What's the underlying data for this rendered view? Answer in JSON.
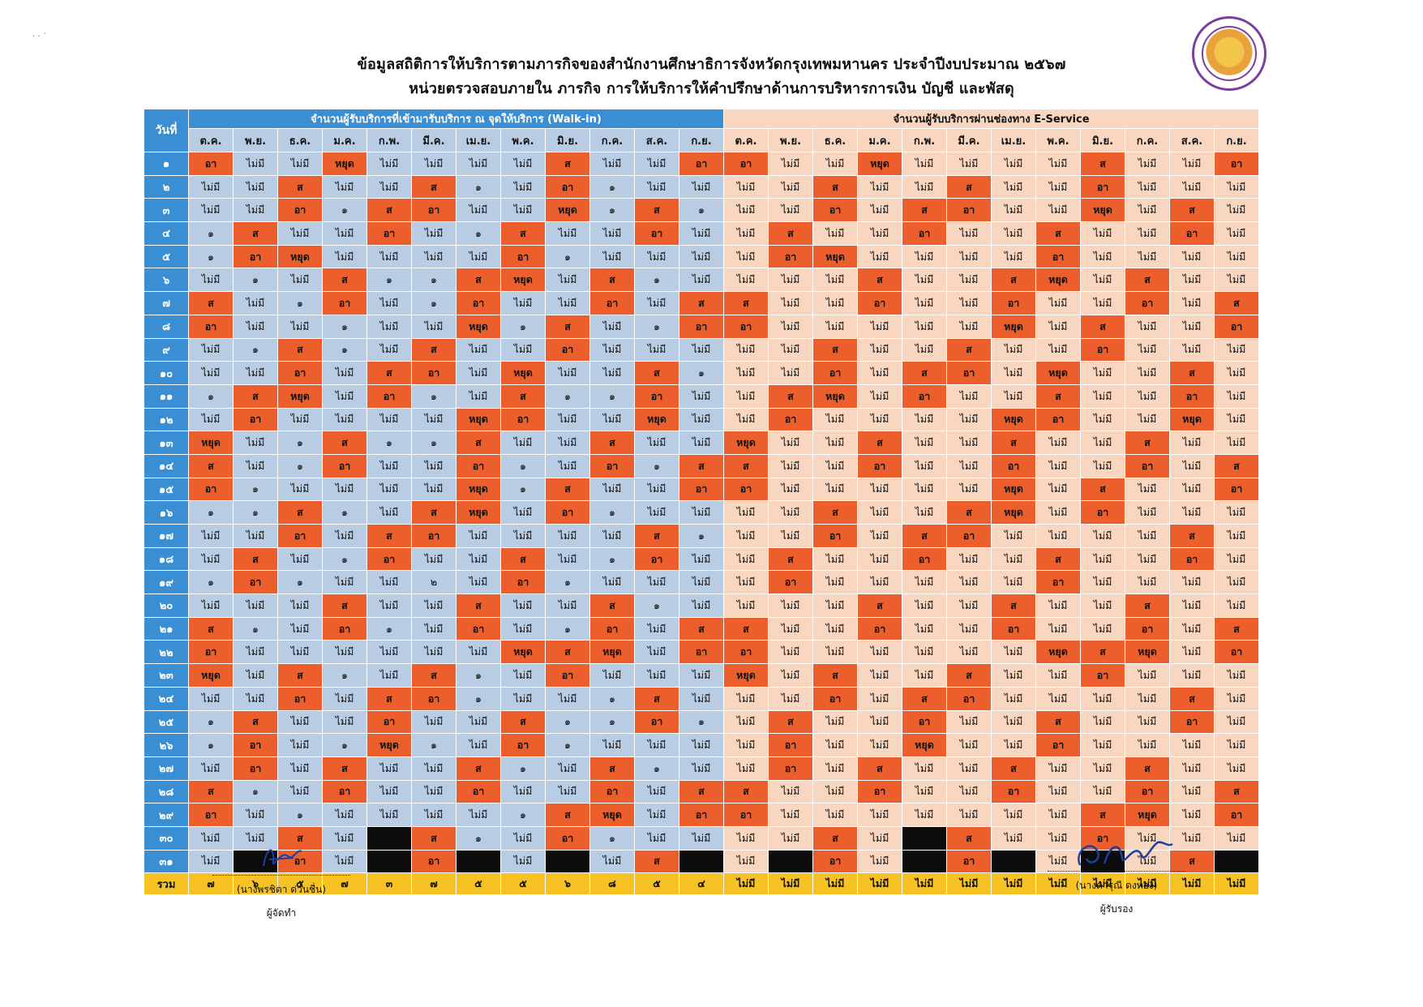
{
  "title_line1": "ข้อมูลสถิติการให้บริการตามภารกิจของสำนักงานศึกษาธิการจังหวัดกรุงเทพมหานคร ประจำปีงบประมาณ ๒๕๖๗",
  "title_line2": "หน่วยตรวจสอบภายใน ภารกิจ การให้บริการให้คำปรึกษาด้านการบริหารการเงิน บัญชี และพัสดุ",
  "table": {
    "corner_label": "วันที่",
    "walkin_header": "จำนวนผู้รับบริการที่เข้ามารับบริการ ณ จุดให้บริการ (Walk-in)",
    "eservice_header": "จำนวนผู้รับบริการผ่านช่องทาง E-Service",
    "months": [
      "ต.ค.",
      "พ.ย.",
      "ธ.ค.",
      "ม.ค.",
      "ก.พ.",
      "มี.ค.",
      "เม.ย.",
      "พ.ค.",
      "มิ.ย.",
      "ก.ค.",
      "ส.ค.",
      "ก.ย."
    ],
    "day_labels": [
      "๑",
      "๒",
      "๓",
      "๔",
      "๕",
      "๖",
      "๗",
      "๘",
      "๙",
      "๑๐",
      "๑๑",
      "๑๒",
      "๑๓",
      "๑๔",
      "๑๕",
      "๑๖",
      "๑๗",
      "๑๘",
      "๑๙",
      "๒๐",
      "๒๑",
      "๒๒",
      "๒๓",
      "๒๔",
      "๒๕",
      "๒๖",
      "๒๗",
      "๒๘",
      "๒๙",
      "๓๐",
      "๓๑"
    ],
    "walkin_rows": [
      [
        "อา",
        "ไม่มี",
        "ไม่มี",
        "หยุด",
        "ไม่มี",
        "ไม่มี",
        "ไม่มี",
        "ไม่มี",
        "ส",
        "ไม่มี",
        "ไม่มี",
        "อา"
      ],
      [
        "ไม่มี",
        "ไม่มี",
        "ส",
        "ไม่มี",
        "ไม่มี",
        "ส",
        "๑",
        "ไม่มี",
        "อา",
        "๑",
        "ไม่มี",
        "ไม่มี"
      ],
      [
        "ไม่มี",
        "ไม่มี",
        "อา",
        "๑",
        "ส",
        "อา",
        "ไม่มี",
        "ไม่มี",
        "หยุด",
        "๑",
        "ส",
        "๑"
      ],
      [
        "๑",
        "ส",
        "ไม่มี",
        "ไม่มี",
        "อา",
        "ไม่มี",
        "๑",
        "ส",
        "ไม่มี",
        "ไม่มี",
        "อา",
        "ไม่มี"
      ],
      [
        "๑",
        "อา",
        "หยุด",
        "ไม่มี",
        "ไม่มี",
        "ไม่มี",
        "ไม่มี",
        "อา",
        "๑",
        "ไม่มี",
        "ไม่มี",
        "ไม่มี"
      ],
      [
        "ไม่มี",
        "๑",
        "ไม่มี",
        "ส",
        "๑",
        "๑",
        "ส",
        "หยุด",
        "ไม่มี",
        "ส",
        "๑",
        "ไม่มี"
      ],
      [
        "ส",
        "ไม่มี",
        "๑",
        "อา",
        "ไม่มี",
        "๑",
        "อา",
        "ไม่มี",
        "ไม่มี",
        "อา",
        "ไม่มี",
        "ส"
      ],
      [
        "อา",
        "ไม่มี",
        "ไม่มี",
        "๑",
        "ไม่มี",
        "ไม่มี",
        "หยุด",
        "๑",
        "ส",
        "ไม่มี",
        "๑",
        "อา"
      ],
      [
        "ไม่มี",
        "๑",
        "ส",
        "๑",
        "ไม่มี",
        "ส",
        "ไม่มี",
        "ไม่มี",
        "อา",
        "ไม่มี",
        "ไม่มี",
        "ไม่มี"
      ],
      [
        "ไม่มี",
        "ไม่มี",
        "อา",
        "ไม่มี",
        "ส",
        "อา",
        "ไม่มี",
        "หยุด",
        "ไม่มี",
        "ไม่มี",
        "ส",
        "๑"
      ],
      [
        "๑",
        "ส",
        "หยุด",
        "ไม่มี",
        "อา",
        "๑",
        "ไม่มี",
        "ส",
        "๑",
        "๑",
        "อา",
        "ไม่มี"
      ],
      [
        "ไม่มี",
        "อา",
        "ไม่มี",
        "ไม่มี",
        "ไม่มี",
        "ไม่มี",
        "หยุด",
        "อา",
        "ไม่มี",
        "ไม่มี",
        "หยุด",
        "ไม่มี"
      ],
      [
        "หยุด",
        "ไม่มี",
        "๑",
        "ส",
        "๑",
        "๑",
        "ส",
        "ไม่มี",
        "ไม่มี",
        "ส",
        "ไม่มี",
        "ไม่มี"
      ],
      [
        "ส",
        "ไม่มี",
        "๑",
        "อา",
        "ไม่มี",
        "ไม่มี",
        "อา",
        "๑",
        "ไม่มี",
        "อา",
        "๑",
        "ส"
      ],
      [
        "อา",
        "๑",
        "ไม่มี",
        "ไม่มี",
        "ไม่มี",
        "ไม่มี",
        "หยุด",
        "๑",
        "ส",
        "ไม่มี",
        "ไม่มี",
        "อา"
      ],
      [
        "๑",
        "๑",
        "ส",
        "๑",
        "ไม่มี",
        "ส",
        "หยุด",
        "ไม่มี",
        "อา",
        "๑",
        "ไม่มี",
        "ไม่มี"
      ],
      [
        "ไม่มี",
        "ไม่มี",
        "อา",
        "ไม่มี",
        "ส",
        "อา",
        "ไม่มี",
        "ไม่มี",
        "ไม่มี",
        "ไม่มี",
        "ส",
        "๑"
      ],
      [
        "ไม่มี",
        "ส",
        "ไม่มี",
        "๑",
        "อา",
        "ไม่มี",
        "ไม่มี",
        "ส",
        "ไม่มี",
        "๑",
        "อา",
        "ไม่มี"
      ],
      [
        "๑",
        "อา",
        "๑",
        "ไม่มี",
        "ไม่มี",
        "๒",
        "ไม่มี",
        "อา",
        "๑",
        "ไม่มี",
        "ไม่มี",
        "ไม่มี"
      ],
      [
        "ไม่มี",
        "ไม่มี",
        "ไม่มี",
        "ส",
        "ไม่มี",
        "ไม่มี",
        "ส",
        "ไม่มี",
        "ไม่มี",
        "ส",
        "๑",
        "ไม่มี"
      ],
      [
        "ส",
        "๑",
        "ไม่มี",
        "อา",
        "๑",
        "ไม่มี",
        "อา",
        "ไม่มี",
        "๑",
        "อา",
        "ไม่มี",
        "ส"
      ],
      [
        "อา",
        "ไม่มี",
        "ไม่มี",
        "ไม่มี",
        "ไม่มี",
        "ไม่มี",
        "ไม่มี",
        "หยุด",
        "ส",
        "หยุด",
        "ไม่มี",
        "อา"
      ],
      [
        "หยุด",
        "ไม่มี",
        "ส",
        "๑",
        "ไม่มี",
        "ส",
        "๑",
        "ไม่มี",
        "อา",
        "ไม่มี",
        "ไม่มี",
        "ไม่มี"
      ],
      [
        "ไม่มี",
        "ไม่มี",
        "อา",
        "ไม่มี",
        "ส",
        "อา",
        "๑",
        "ไม่มี",
        "ไม่มี",
        "๑",
        "ส",
        "ไม่มี"
      ],
      [
        "๑",
        "ส",
        "ไม่มี",
        "ไม่มี",
        "อา",
        "ไม่มี",
        "ไม่มี",
        "ส",
        "๑",
        "๑",
        "อา",
        "๑"
      ],
      [
        "๑",
        "อา",
        "ไม่มี",
        "๑",
        "หยุด",
        "๑",
        "ไม่มี",
        "อา",
        "๑",
        "ไม่มี",
        "ไม่มี",
        "ไม่มี"
      ],
      [
        "ไม่มี",
        "อา",
        "ไม่มี",
        "ส",
        "ไม่มี",
        "ไม่มี",
        "ส",
        "๑",
        "ไม่มี",
        "ส",
        "๑",
        "ไม่มี"
      ],
      [
        "ส",
        "๑",
        "ไม่มี",
        "อา",
        "ไม่มี",
        "ไม่มี",
        "อา",
        "ไม่มี",
        "ไม่มี",
        "อา",
        "ไม่มี",
        "ส"
      ],
      [
        "อา",
        "ไม่มี",
        "๑",
        "ไม่มี",
        "ไม่มี",
        "ไม่มี",
        "ไม่มี",
        "๑",
        "ส",
        "หยุด",
        "ไม่มี",
        "อา"
      ],
      [
        "ไม่มี",
        "ไม่มี",
        "ส",
        "ไม่มี",
        "",
        "ส",
        "๑",
        "ไม่มี",
        "อา",
        "๑",
        "ไม่มี",
        "ไม่มี"
      ],
      [
        "ไม่มี",
        "",
        "อา",
        "ไม่มี",
        "",
        "อา",
        "",
        "ไม่มี",
        "",
        "ไม่มี",
        "ส",
        ""
      ]
    ],
    "eservice_rows": [
      [
        "อา",
        "ไม่มี",
        "ไม่มี",
        "หยุด",
        "ไม่มี",
        "ไม่มี",
        "ไม่มี",
        "ไม่มี",
        "ส",
        "ไม่มี",
        "ไม่มี",
        "อา"
      ],
      [
        "ไม่มี",
        "ไม่มี",
        "ส",
        "ไม่มี",
        "ไม่มี",
        "ส",
        "ไม่มี",
        "ไม่มี",
        "อา",
        "ไม่มี",
        "ไม่มี",
        "ไม่มี"
      ],
      [
        "ไม่มี",
        "ไม่มี",
        "อา",
        "ไม่มี",
        "ส",
        "อา",
        "ไม่มี",
        "ไม่มี",
        "หยุด",
        "ไม่มี",
        "ส",
        "ไม่มี"
      ],
      [
        "ไม่มี",
        "ส",
        "ไม่มี",
        "ไม่มี",
        "อา",
        "ไม่มี",
        "ไม่มี",
        "ส",
        "ไม่มี",
        "ไม่มี",
        "อา",
        "ไม่มี"
      ],
      [
        "ไม่มี",
        "อา",
        "หยุด",
        "ไม่มี",
        "ไม่มี",
        "ไม่มี",
        "ไม่มี",
        "อา",
        "ไม่มี",
        "ไม่มี",
        "ไม่มี",
        "ไม่มี"
      ],
      [
        "ไม่มี",
        "ไม่มี",
        "ไม่มี",
        "ส",
        "ไม่มี",
        "ไม่มี",
        "ส",
        "หยุด",
        "ไม่มี",
        "ส",
        "ไม่มี",
        "ไม่มี"
      ],
      [
        "ส",
        "ไม่มี",
        "ไม่มี",
        "อา",
        "ไม่มี",
        "ไม่มี",
        "อา",
        "ไม่มี",
        "ไม่มี",
        "อา",
        "ไม่มี",
        "ส"
      ],
      [
        "อา",
        "ไม่มี",
        "ไม่มี",
        "ไม่มี",
        "ไม่มี",
        "ไม่มี",
        "หยุด",
        "ไม่มี",
        "ส",
        "ไม่มี",
        "ไม่มี",
        "อา"
      ],
      [
        "ไม่มี",
        "ไม่มี",
        "ส",
        "ไม่มี",
        "ไม่มี",
        "ส",
        "ไม่มี",
        "ไม่มี",
        "อา",
        "ไม่มี",
        "ไม่มี",
        "ไม่มี"
      ],
      [
        "ไม่มี",
        "ไม่มี",
        "อา",
        "ไม่มี",
        "ส",
        "อา",
        "ไม่มี",
        "หยุด",
        "ไม่มี",
        "ไม่มี",
        "ส",
        "ไม่มี"
      ],
      [
        "ไม่มี",
        "ส",
        "หยุด",
        "ไม่มี",
        "อา",
        "ไม่มี",
        "ไม่มี",
        "ส",
        "ไม่มี",
        "ไม่มี",
        "อา",
        "ไม่มี"
      ],
      [
        "ไม่มี",
        "อา",
        "ไม่มี",
        "ไม่มี",
        "ไม่มี",
        "ไม่มี",
        "หยุด",
        "อา",
        "ไม่มี",
        "ไม่มี",
        "หยุด",
        "ไม่มี"
      ],
      [
        "หยุด",
        "ไม่มี",
        "ไม่มี",
        "ส",
        "ไม่มี",
        "ไม่มี",
        "ส",
        "ไม่มี",
        "ไม่มี",
        "ส",
        "ไม่มี",
        "ไม่มี"
      ],
      [
        "ส",
        "ไม่มี",
        "ไม่มี",
        "อา",
        "ไม่มี",
        "ไม่มี",
        "อา",
        "ไม่มี",
        "ไม่มี",
        "อา",
        "ไม่มี",
        "ส"
      ],
      [
        "อา",
        "ไม่มี",
        "ไม่มี",
        "ไม่มี",
        "ไม่มี",
        "ไม่มี",
        "หยุด",
        "ไม่มี",
        "ส",
        "ไม่มี",
        "ไม่มี",
        "อา"
      ],
      [
        "ไม่มี",
        "ไม่มี",
        "ส",
        "ไม่มี",
        "ไม่มี",
        "ส",
        "หยุด",
        "ไม่มี",
        "อา",
        "ไม่มี",
        "ไม่มี",
        "ไม่มี"
      ],
      [
        "ไม่มี",
        "ไม่มี",
        "อา",
        "ไม่มี",
        "ส",
        "อา",
        "ไม่มี",
        "ไม่มี",
        "ไม่มี",
        "ไม่มี",
        "ส",
        "ไม่มี"
      ],
      [
        "ไม่มี",
        "ส",
        "ไม่มี",
        "ไม่มี",
        "อา",
        "ไม่มี",
        "ไม่มี",
        "ส",
        "ไม่มี",
        "ไม่มี",
        "อา",
        "ไม่มี"
      ],
      [
        "ไม่มี",
        "อา",
        "ไม่มี",
        "ไม่มี",
        "ไม่มี",
        "ไม่มี",
        "ไม่มี",
        "อา",
        "ไม่มี",
        "ไม่มี",
        "ไม่มี",
        "ไม่มี"
      ],
      [
        "ไม่มี",
        "ไม่มี",
        "ไม่มี",
        "ส",
        "ไม่มี",
        "ไม่มี",
        "ส",
        "ไม่มี",
        "ไม่มี",
        "ส",
        "ไม่มี",
        "ไม่มี"
      ],
      [
        "ส",
        "ไม่มี",
        "ไม่มี",
        "อา",
        "ไม่มี",
        "ไม่มี",
        "อา",
        "ไม่มี",
        "ไม่มี",
        "อา",
        "ไม่มี",
        "ส"
      ],
      [
        "อา",
        "ไม่มี",
        "ไม่มี",
        "ไม่มี",
        "ไม่มี",
        "ไม่มี",
        "ไม่มี",
        "หยุด",
        "ส",
        "หยุด",
        "ไม่มี",
        "อา"
      ],
      [
        "หยุด",
        "ไม่มี",
        "ส",
        "ไม่มี",
        "ไม่มี",
        "ส",
        "ไม่มี",
        "ไม่มี",
        "อา",
        "ไม่มี",
        "ไม่มี",
        "ไม่มี"
      ],
      [
        "ไม่มี",
        "ไม่มี",
        "อา",
        "ไม่มี",
        "ส",
        "อา",
        "ไม่มี",
        "ไม่มี",
        "ไม่มี",
        "ไม่มี",
        "ส",
        "ไม่มี"
      ],
      [
        "ไม่มี",
        "ส",
        "ไม่มี",
        "ไม่มี",
        "อา",
        "ไม่มี",
        "ไม่มี",
        "ส",
        "ไม่มี",
        "ไม่มี",
        "อา",
        "ไม่มี"
      ],
      [
        "ไม่มี",
        "อา",
        "ไม่มี",
        "ไม่มี",
        "หยุด",
        "ไม่มี",
        "ไม่มี",
        "อา",
        "ไม่มี",
        "ไม่มี",
        "ไม่มี",
        "ไม่มี"
      ],
      [
        "ไม่มี",
        "อา",
        "ไม่มี",
        "ส",
        "ไม่มี",
        "ไม่มี",
        "ส",
        "ไม่มี",
        "ไม่มี",
        "ส",
        "ไม่มี",
        "ไม่มี"
      ],
      [
        "ส",
        "ไม่มี",
        "ไม่มี",
        "อา",
        "ไม่มี",
        "ไม่มี",
        "อา",
        "ไม่มี",
        "ไม่มี",
        "อา",
        "ไม่มี",
        "ส"
      ],
      [
        "อา",
        "ไม่มี",
        "ไม่มี",
        "ไม่มี",
        "ไม่มี",
        "ไม่มี",
        "ไม่มี",
        "ไม่มี",
        "ส",
        "หยุด",
        "ไม่มี",
        "อา"
      ],
      [
        "ไม่มี",
        "ไม่มี",
        "ส",
        "ไม่มี",
        "",
        "ส",
        "ไม่มี",
        "ไม่มี",
        "อา",
        "ไม่มี",
        "ไม่มี",
        "ไม่มี"
      ],
      [
        "ไม่มี",
        "",
        "อา",
        "ไม่มี",
        "",
        "อา",
        "",
        "ไม่มี",
        "",
        "ไม่มี",
        "ส",
        ""
      ]
    ],
    "sum_label": "รวม",
    "walkin_totals": [
      "๗",
      "๖",
      "๕",
      "๗",
      "๓",
      "๗",
      "๕",
      "๕",
      "๖",
      "๘",
      "๕",
      "๔"
    ],
    "eservice_totals": [
      "ไม่มี",
      "ไม่มี",
      "ไม่มี",
      "ไม่มี",
      "ไม่มี",
      "ไม่มี",
      "ไม่มี",
      "ไม่มี",
      "ไม่มี",
      "ไม่มี",
      "ไม่มี",
      "ไม่มี"
    ]
  },
  "signatures": {
    "left": {
      "name": "(นางพรชิตา  ด่วนชื่น)",
      "role": "ผู้จัดทำ"
    },
    "right": {
      "name": "(นางดารุณี ดงทอง)",
      "role": "ผู้รับรอง"
    }
  },
  "colors": {
    "walkin_header": "#3a8fd4",
    "walkin_cell": "#b8cde3",
    "eservice_cell": "#f9d6bf",
    "highlight": "#ec5f2c",
    "sum_row": "#f7c324",
    "blocked": "#0b0b0b"
  }
}
